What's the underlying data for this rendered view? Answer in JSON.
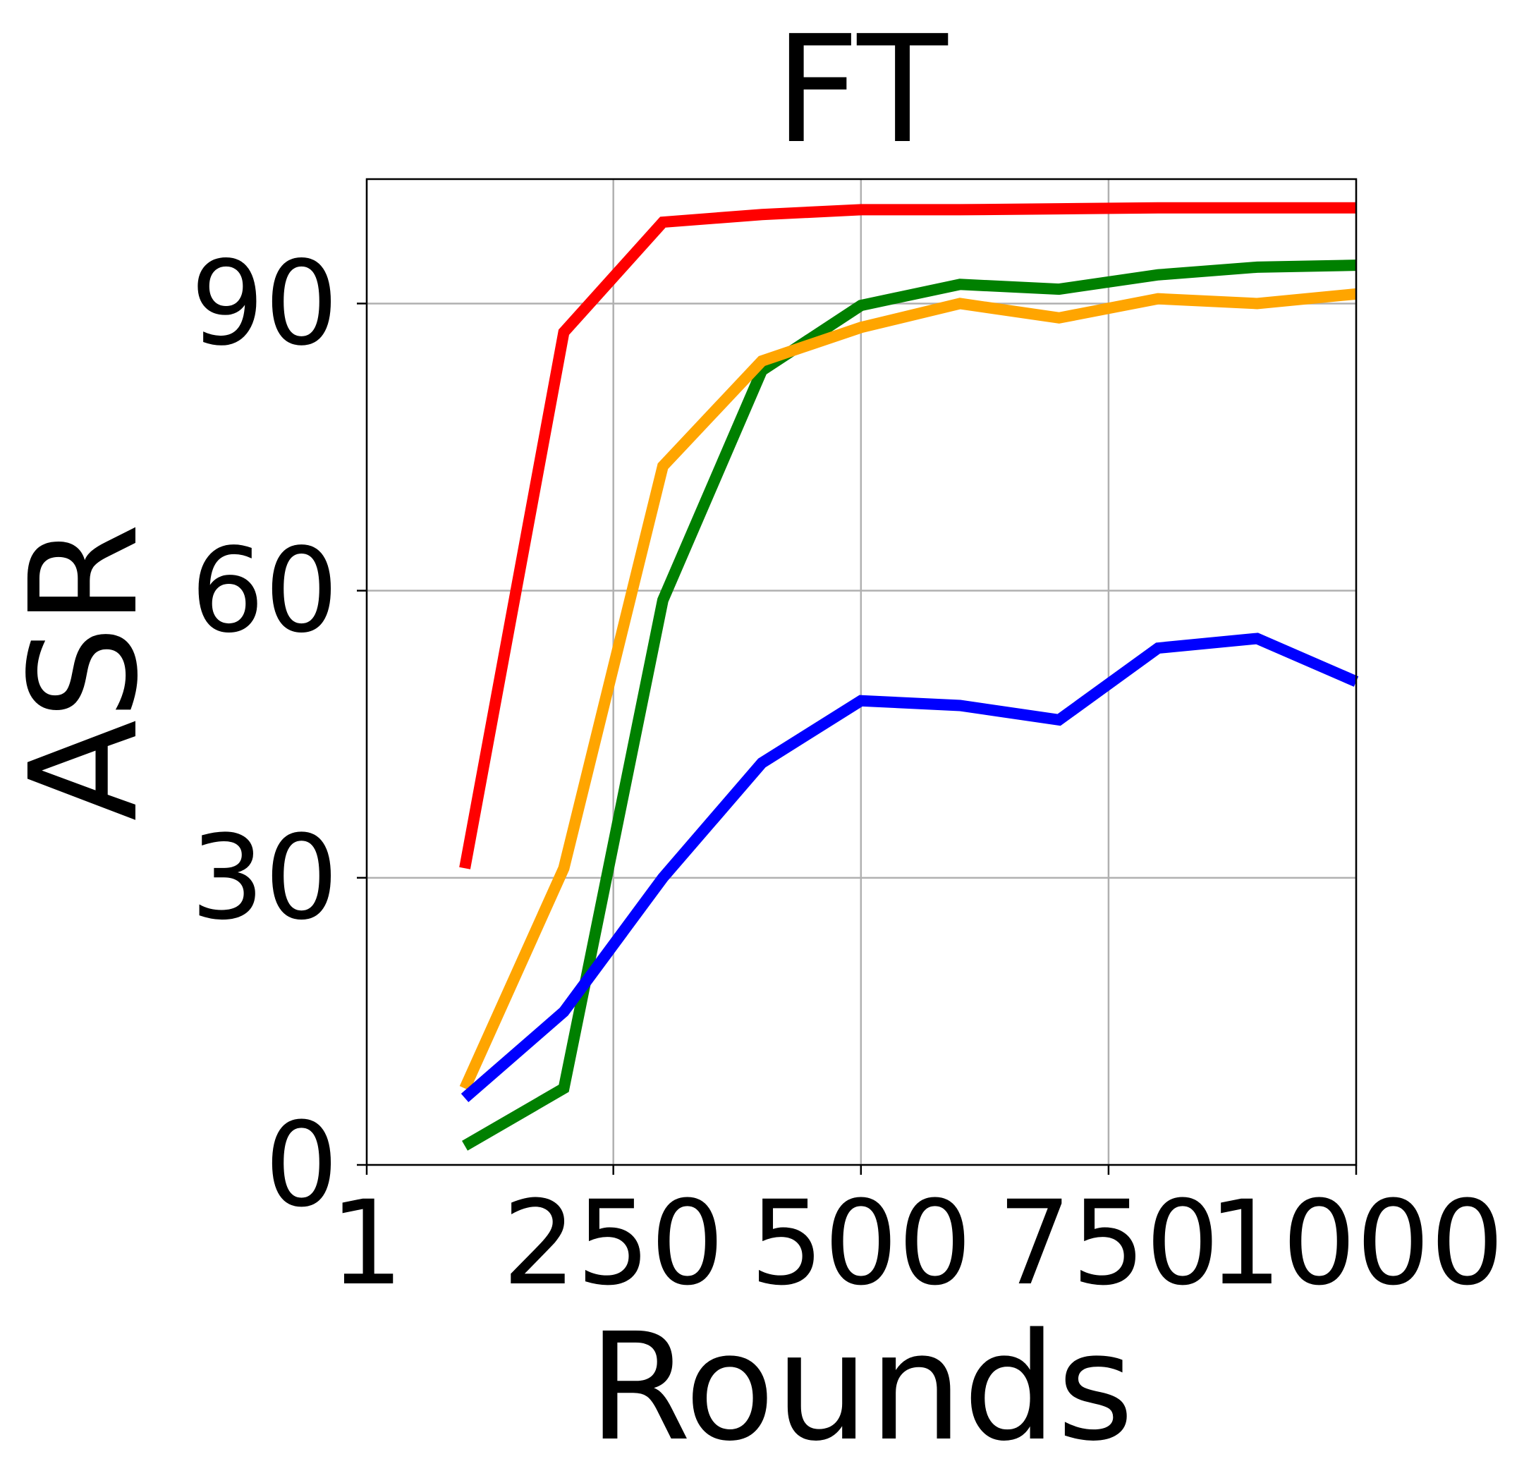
{
  "chart_data": {
    "type": "line",
    "title": "FT",
    "xlabel": "Rounds",
    "ylabel": "ASR",
    "xlim": [
      1,
      1000
    ],
    "ylim": [
      0,
      103
    ],
    "x_ticks": [
      1,
      250,
      500,
      750,
      1000
    ],
    "x_tick_labels": [
      "1",
      "250",
      "500",
      "750",
      "1000"
    ],
    "y_ticks": [
      0,
      30,
      60,
      90
    ],
    "y_tick_labels": [
      "0",
      "30",
      "60",
      "90"
    ],
    "grid": true,
    "legend": "none",
    "x": [
      100,
      200,
      300,
      400,
      500,
      600,
      700,
      800,
      900,
      1000
    ],
    "series": [
      {
        "color": "#ff0000",
        "values": [
          31,
          87,
          98.5,
          99.3,
          99.8,
          99.8,
          99.9,
          100,
          100,
          100
        ]
      },
      {
        "color": "#008000",
        "values": [
          2,
          8,
          59,
          83,
          89.8,
          92,
          91.5,
          93,
          93.8,
          94
        ]
      },
      {
        "color": "#ffa500",
        "values": [
          8,
          31,
          73,
          84,
          87.5,
          90,
          88.5,
          90.5,
          90,
          91
        ]
      },
      {
        "color": "#0000ff",
        "values": [
          7,
          16,
          30,
          42,
          48.5,
          48,
          46.5,
          54,
          55,
          50.5
        ]
      }
    ]
  }
}
